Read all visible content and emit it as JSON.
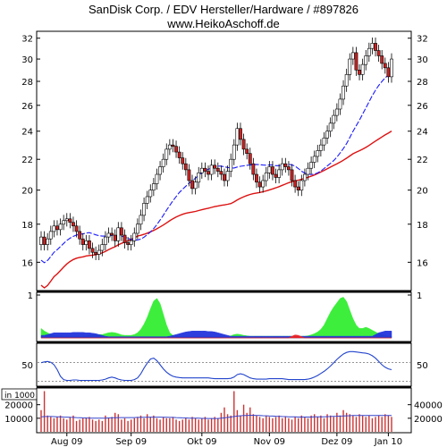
{
  "header": {
    "title": "SanDisk Corp. / EDV Hersteller/Hardware / #897826",
    "subtitle": "www.HeikoAschoff.de"
  },
  "colors": {
    "candle_up": "#ffffff",
    "candle_down": "#cc2222",
    "ma_short": "#1a1aff",
    "ma_long": "#dd1111",
    "indicator_green": "#33ee33",
    "indicator_blue": "#2233dd",
    "indicator_red": "#ee2222",
    "oscillator": "#2244cc",
    "volume": "#cc3333",
    "volume_avg": "#3344cc"
  },
  "chart_data": [
    {
      "type": "candlestick",
      "panel": "price",
      "title": "SanDisk Corp. / EDV Hersteller/Hardware / #897826",
      "yscale": "log",
      "ylim": [
        14.7,
        32.6
      ],
      "yticks": [
        16,
        18,
        20,
        22,
        24,
        26,
        28,
        30,
        32
      ],
      "x_tick_labels": [
        "Aug 09",
        "Sep 09",
        "Okt 09",
        "Nov 09",
        "Dez 09",
        "Jan 10"
      ],
      "grid": false,
      "closes": [
        17.3,
        16.9,
        17.2,
        17.6,
        17.9,
        17.7,
        18.0,
        18.2,
        18.3,
        18.1,
        17.9,
        17.6,
        17.2,
        16.9,
        17.1,
        16.7,
        16.5,
        16.4,
        16.6,
        16.9,
        17.3,
        17.5,
        17.4,
        17.1,
        17.8,
        17.4,
        17.0,
        16.9,
        17.1,
        17.5,
        18.0,
        18.5,
        19.2,
        19.6,
        20.0,
        20.4,
        21.0,
        21.5,
        22.0,
        22.7,
        23.0,
        22.9,
        22.5,
        22.1,
        21.7,
        21.3,
        20.6,
        20.1,
        20.5,
        21.1,
        21.4,
        21.2,
        21.0,
        21.6,
        21.4,
        21.2,
        21.0,
        20.6,
        21.2,
        22.0,
        23.0,
        24.2,
        23.4,
        22.7,
        22.4,
        21.7,
        21.0,
        20.5,
        20.2,
        20.6,
        21.1,
        21.5,
        21.0,
        20.8,
        21.3,
        21.7,
        21.5,
        21.3,
        20.6,
        20.2,
        20.0,
        20.6,
        21.0,
        21.4,
        21.8,
        22.2,
        22.6,
        23.0,
        23.5,
        24.0,
        24.6,
        25.2,
        25.7,
        26.5,
        27.6,
        28.6,
        30.0,
        30.6,
        29.0,
        28.6,
        29.5,
        30.3,
        31.0,
        31.5,
        30.8,
        30.3,
        29.6,
        29.2,
        28.4,
        30.0
      ]
    },
    {
      "type": "area",
      "panel": "indicator",
      "yticks": [
        1
      ],
      "series": [
        {
          "color": "green",
          "values": [
            0.22,
            0.16,
            0.12,
            0.08,
            0.05,
            0.05,
            0.05,
            0.04,
            0.04,
            0.04,
            0.04,
            0.04,
            0.04,
            0.04,
            0.05,
            0.06,
            0.07,
            0.07,
            0.08,
            0.08,
            0.1,
            0.12,
            0.13,
            0.12,
            0.1,
            0.07,
            0.06,
            0.06,
            0.06,
            0.08,
            0.12,
            0.2,
            0.32,
            0.48,
            0.68,
            0.86,
            0.92,
            0.8,
            0.55,
            0.3,
            0.12,
            0.06,
            0.04,
            0.03,
            0.03,
            0.03,
            0.03,
            0.03,
            0.03,
            0.03,
            0.03,
            0.03,
            0.03,
            0.03,
            0.03,
            0.03,
            0.03,
            0.03,
            0.03,
            0.05,
            0.08,
            0.09,
            0.08,
            0.06,
            0.05,
            0.04,
            0.04,
            0.04,
            0.04,
            0.04,
            0.04,
            0.04,
            0.04,
            0.04,
            0.04,
            0.04,
            0.04,
            0.04,
            0.04,
            0.04,
            0.04,
            0.04,
            0.04,
            0.05,
            0.07,
            0.1,
            0.14,
            0.2,
            0.3,
            0.45,
            0.6,
            0.72,
            0.82,
            0.92,
            0.95,
            0.85,
            0.65,
            0.45,
            0.3,
            0.22,
            0.22,
            0.25,
            0.22,
            0.18,
            0.14,
            0.1,
            0.08,
            0.06,
            0.04,
            0.04
          ]
        },
        {
          "color": "blue",
          "values": [
            0.06,
            0.06,
            0.08,
            0.1,
            0.12,
            0.12,
            0.12,
            0.12,
            0.12,
            0.12,
            0.13,
            0.13,
            0.13,
            0.13,
            0.12,
            0.12,
            0.11,
            0.1,
            0.08,
            0.06,
            0.04,
            0.03,
            0.03,
            0.03,
            0.03,
            0.03,
            0.03,
            0.03,
            0.03,
            0.03,
            0.03,
            0.03,
            0.03,
            0.03,
            0.03,
            0.03,
            0.03,
            0.03,
            0.03,
            0.03,
            0.04,
            0.06,
            0.08,
            0.1,
            0.12,
            0.14,
            0.15,
            0.16,
            0.16,
            0.16,
            0.16,
            0.16,
            0.15,
            0.15,
            0.14,
            0.12,
            0.1,
            0.08,
            0.06,
            0.04,
            0.04,
            0.04,
            0.04,
            0.04,
            0.04,
            0.04,
            0.04,
            0.04,
            0.04,
            0.04,
            0.04,
            0.04,
            0.04,
            0.04,
            0.04,
            0.04,
            0.04,
            0.04,
            0.04,
            0.04,
            0.04,
            0.04,
            0.04,
            0.04,
            0.04,
            0.04,
            0.04,
            0.04,
            0.04,
            0.04,
            0.04,
            0.04,
            0.04,
            0.04,
            0.04,
            0.04,
            0.04,
            0.04,
            0.04,
            0.04,
            0.04,
            0.04,
            0.04,
            0.04,
            0.08,
            0.12,
            0.14,
            0.16,
            0.16,
            0.16
          ]
        },
        {
          "color": "red",
          "values": [
            0,
            0,
            0,
            0,
            0,
            0,
            0,
            0,
            0,
            0,
            0,
            0,
            0,
            0,
            0,
            0,
            0,
            0,
            0,
            0,
            0,
            0,
            0,
            0,
            0,
            0,
            0,
            0,
            0,
            0,
            0,
            0,
            0,
            0,
            0,
            0,
            0,
            0,
            0,
            0,
            0,
            0,
            0,
            0,
            0,
            0,
            0,
            0,
            0,
            0,
            0,
            0,
            0,
            0,
            0,
            0,
            0,
            0,
            0,
            0,
            0,
            0,
            0,
            0,
            0,
            0,
            0,
            0,
            0,
            0,
            0,
            0,
            0,
            0,
            0,
            0,
            0,
            0,
            0.04,
            0.07,
            0.06,
            0.03,
            0,
            0,
            0,
            0,
            0,
            0,
            0,
            0,
            0,
            0,
            0,
            0,
            0,
            0,
            0,
            0,
            0,
            0,
            0,
            0,
            0,
            0,
            0,
            0,
            0,
            0,
            0,
            0
          ]
        }
      ]
    },
    {
      "type": "line",
      "panel": "oscillator",
      "yticks": [
        50
      ],
      "reference_lines": [
        55,
        10
      ],
      "values": [
        55,
        57,
        58,
        56,
        50,
        38,
        22,
        14,
        12,
        12,
        13,
        13,
        12,
        12,
        12,
        12,
        12,
        12,
        12,
        13,
        15,
        18,
        20,
        18,
        15,
        13,
        12,
        12,
        12,
        14,
        18,
        28,
        42,
        54,
        64,
        66,
        60,
        50,
        40,
        32,
        26,
        22,
        20,
        19,
        18,
        18,
        18,
        18,
        18,
        18,
        18,
        18,
        18,
        17,
        16,
        16,
        16,
        16,
        16,
        17,
        20,
        26,
        28,
        26,
        22,
        18,
        16,
        15,
        15,
        15,
        15,
        16,
        16,
        16,
        16,
        16,
        15,
        14,
        14,
        14,
        14,
        14,
        14,
        15,
        17,
        20,
        24,
        29,
        34,
        40,
        47,
        55,
        63,
        70,
        76,
        80,
        82,
        82,
        81,
        80,
        79,
        78,
        76,
        72,
        66,
        58,
        50,
        44,
        40,
        38
      ]
    },
    {
      "type": "bar",
      "panel": "volume",
      "yticks_left": [
        20000,
        10000
      ],
      "yticks_right": [
        40000,
        20000
      ],
      "unit_label": "in 1000",
      "values": [
        16000,
        30000,
        12000,
        11000,
        10000,
        11000,
        12000,
        10000,
        9000,
        11000,
        12000,
        8000,
        9000,
        10000,
        10000,
        11000,
        9000,
        8000,
        9000,
        8000,
        12000,
        10000,
        11000,
        14000,
        13000,
        9000,
        10000,
        8000,
        9000,
        10000,
        11000,
        12000,
        10000,
        13000,
        11000,
        12000,
        10000,
        9000,
        11000,
        10000,
        10000,
        11000,
        9000,
        8000,
        9000,
        10000,
        9000,
        11000,
        10000,
        9000,
        10000,
        11000,
        9000,
        10000,
        11000,
        10000,
        14000,
        18000,
        13000,
        12000,
        30000,
        16000,
        12000,
        20000,
        14000,
        18000,
        13000,
        12000,
        11000,
        10000,
        12000,
        11000,
        10000,
        11000,
        12000,
        10000,
        11000,
        10000,
        9000,
        11000,
        10000,
        12000,
        11000,
        10000,
        12000,
        13000,
        11000,
        12000,
        10000,
        13000,
        12000,
        11000,
        14000,
        12000,
        16000,
        14000,
        13000,
        12000,
        11000,
        13000,
        12000,
        11000,
        12000,
        10000,
        11000,
        12000,
        11000,
        13000,
        12000,
        11000
      ],
      "average": [
        11000,
        11200,
        11300,
        11300,
        11200,
        11100,
        11000,
        10900,
        10800,
        10700,
        10600,
        10500,
        10400,
        10300,
        10200,
        10100,
        10000,
        10000,
        10000,
        10000,
        10100,
        10200,
        10300,
        10400,
        10500,
        10500,
        10500,
        10500,
        10500,
        10500,
        10600,
        10600,
        10700,
        10700,
        10800,
        10800,
        10800,
        10800,
        10700,
        10700,
        10600,
        10600,
        10500,
        10400,
        10300,
        10200,
        10100,
        10000,
        10000,
        10000,
        9900,
        9900,
        9800,
        9800,
        9800,
        9800,
        10000,
        10300,
        10600,
        10900,
        11300,
        11600,
        11800,
        12000,
        12100,
        12200,
        12200,
        12100,
        12000,
        11900,
        11800,
        11700,
        11600,
        11500,
        11400,
        11300,
        11200,
        11100,
        11000,
        11000,
        10900,
        10900,
        10900,
        10900,
        10900,
        11000,
        11000,
        11100,
        11100,
        11200,
        11300,
        11400,
        11500,
        11600,
        11700,
        11800,
        11900,
        12000,
        12000,
        12100,
        12100,
        12100,
        12100,
        12100,
        12100,
        12100,
        12100,
        12100,
        12100,
        12100
      ]
    }
  ]
}
